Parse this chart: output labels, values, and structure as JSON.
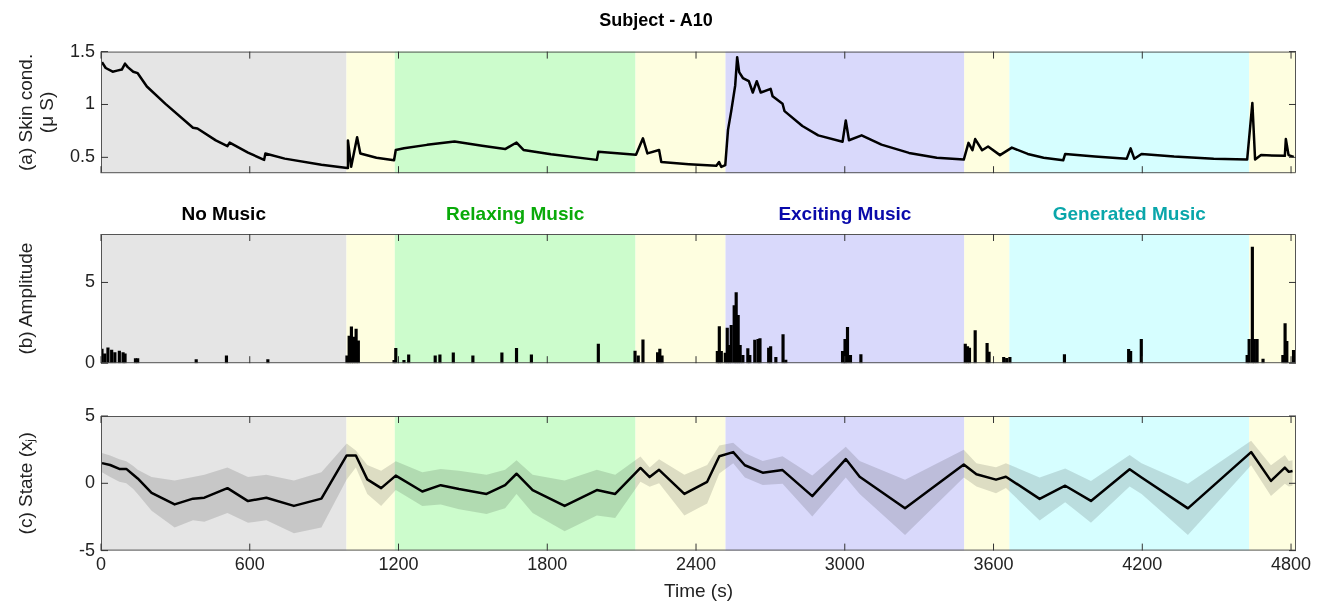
{
  "chart_data": [
    {
      "type": "line",
      "title": "Subject - A10",
      "ylabel": "(a) Skin cond.\n(μ S)",
      "xlim": [
        0,
        4820
      ],
      "xticks": [
        0,
        600,
        1200,
        1800,
        2400,
        3000,
        3600,
        4200,
        4800
      ],
      "ylim": [
        0.35,
        1.5
      ],
      "yticks": [
        0.5,
        1,
        1.5
      ],
      "tick_labels": "y",
      "grid": false,
      "legend": false,
      "bands": [
        {
          "axis": "x",
          "from": 0,
          "to": 990,
          "color": "#e5e5e5"
        },
        {
          "axis": "x",
          "from": 990,
          "to": 1185,
          "color": "#fefee0"
        },
        {
          "axis": "x",
          "from": 1185,
          "to": 2156,
          "color": "#ccfccc"
        },
        {
          "axis": "x",
          "from": 2156,
          "to": 2519,
          "color": "#fefee0"
        },
        {
          "axis": "x",
          "from": 2519,
          "to": 3482,
          "color": "#d9d9fb"
        },
        {
          "axis": "x",
          "from": 3482,
          "to": 3664,
          "color": "#fefee0"
        },
        {
          "axis": "x",
          "from": 3664,
          "to": 4631,
          "color": "#d6feff"
        },
        {
          "axis": "x",
          "from": 4631,
          "to": 4820,
          "color": "#fefee0"
        }
      ],
      "series": [
        {
          "color": "#000000",
          "x": [
            4,
            19,
            47,
            65,
            84,
            97,
            108,
            130,
            148,
            185,
            260,
            371,
            389,
            463,
            510,
            519,
            593,
            658,
            663,
            741,
            889,
            993,
            996,
            1009,
            1033,
            1046,
            1111,
            1182,
            1189,
            1222,
            1315,
            1426,
            1537,
            1630,
            1676,
            1704,
            1815,
            2000,
            2006,
            2158,
            2186,
            2204,
            2251,
            2260,
            2371,
            2482,
            2493,
            2502,
            2518,
            2529,
            2542,
            2558,
            2566,
            2574,
            2589,
            2613,
            2629,
            2645,
            2661,
            2701,
            2709,
            2749,
            2757,
            2829,
            2893,
            2991,
            3004,
            3017,
            3068,
            3148,
            3259,
            3371,
            3480,
            3499,
            3515,
            3526,
            3554,
            3578,
            3626,
            3674,
            3738,
            3802,
            3881,
            3889,
            4009,
            4137,
            4153,
            4168,
            4197,
            4328,
            4488,
            4623,
            4644,
            4655,
            4679,
            4775,
            4779,
            4790,
            4811
          ],
          "values": [
            1.4,
            1.345,
            1.31,
            1.32,
            1.33,
            1.386,
            1.353,
            1.31,
            1.296,
            1.17,
            1.006,
            0.78,
            0.773,
            0.66,
            0.606,
            0.64,
            0.545,
            0.476,
            0.537,
            0.488,
            0.43,
            0.4,
            0.66,
            0.41,
            0.69,
            0.537,
            0.496,
            0.472,
            0.57,
            0.586,
            0.618,
            0.65,
            0.61,
            0.578,
            0.64,
            0.57,
            0.529,
            0.476,
            0.553,
            0.525,
            0.68,
            0.537,
            0.57,
            0.455,
            0.435,
            0.42,
            0.455,
            0.41,
            0.426,
            0.76,
            0.937,
            1.18,
            1.447,
            1.306,
            1.25,
            1.22,
            1.113,
            1.22,
            1.113,
            1.148,
            1.077,
            1.007,
            0.937,
            0.796,
            0.708,
            0.648,
            0.849,
            0.662,
            0.708,
            0.62,
            0.542,
            0.496,
            0.479,
            0.637,
            0.567,
            0.673,
            0.567,
            0.602,
            0.521,
            0.592,
            0.532,
            0.496,
            0.472,
            0.532,
            0.507,
            0.486,
            0.585,
            0.486,
            0.532,
            0.507,
            0.486,
            0.479,
            1.014,
            0.479,
            0.521,
            0.514,
            0.673,
            0.521,
            0.504
          ]
        }
      ]
    },
    {
      "type": "bar",
      "ylabel": "(b) Amplitude",
      "xlim": [
        0,
        4820
      ],
      "xticks": [
        0,
        600,
        1200,
        1800,
        2400,
        3000,
        3600,
        4200,
        4800
      ],
      "ylim": [
        0,
        8
      ],
      "yticks": [
        0,
        5
      ],
      "tick_labels": "y",
      "grid": false,
      "legend": false,
      "bands": [
        {
          "axis": "x",
          "from": 0,
          "to": 990,
          "color": "#e5e5e5",
          "label": "No Music"
        },
        {
          "axis": "x",
          "from": 990,
          "to": 1185,
          "color": "#fefee0"
        },
        {
          "axis": "x",
          "from": 1185,
          "to": 2156,
          "color": "#ccfccc",
          "label": "Relaxing Music"
        },
        {
          "axis": "x",
          "from": 2156,
          "to": 2519,
          "color": "#fefee0"
        },
        {
          "axis": "x",
          "from": 2519,
          "to": 3482,
          "color": "#d9d9fb",
          "label": "Exciting Music"
        },
        {
          "axis": "x",
          "from": 3482,
          "to": 3664,
          "color": "#fefee0"
        },
        {
          "axis": "x",
          "from": 3664,
          "to": 4631,
          "color": "#d6feff",
          "label": "Generated Music"
        },
        {
          "axis": "x",
          "from": 4631,
          "to": 4820,
          "color": "#fefee0"
        }
      ],
      "series": [
        {
          "color": "#000000",
          "x": [
            4,
            15,
            28,
            43,
            56,
            74,
            89,
            97,
            139,
            148,
            384,
            506,
            673,
            992,
            1001,
            1010,
            1019,
            1029,
            1038,
            1182,
            1189,
            1222,
            1241,
            1348,
            1367,
            1421,
            1500,
            1617,
            1676,
            1736,
            2006,
            2154,
            2167,
            2186,
            2245,
            2254,
            2263,
            2486,
            2494,
            2502,
            2518,
            2526,
            2534,
            2542,
            2554,
            2562,
            2570,
            2578,
            2589,
            2609,
            2617,
            2637,
            2650,
            2658,
            2693,
            2701,
            2722,
            2751,
            2762,
            2991,
            3001,
            3011,
            3023,
            3065,
            3486,
            3495,
            3503,
            3526,
            3574,
            3582,
            3641,
            3653,
            3666,
            3886,
            4145,
            4153,
            4196,
            4623,
            4631,
            4644,
            4652,
            4663,
            4687,
            4767,
            4776,
            4783,
            4810
          ],
          "values": [
            0.87,
            0.58,
            0.95,
            0.81,
            0.66,
            0.75,
            0.66,
            0.58,
            0.29,
            0.29,
            0.23,
            0.46,
            0.23,
            0.46,
            1.68,
            2.25,
            1.62,
            2.11,
            1.39,
            0.17,
            0.92,
            0.17,
            0.52,
            0.46,
            0.52,
            0.64,
            0.46,
            0.64,
            0.92,
            0.52,
            1.18,
            0.75,
            0.46,
            1.45,
            0.66,
            0.87,
            0.46,
            0.74,
            2.27,
            0.74,
            0.62,
            2.17,
            1.11,
            2.34,
            3.57,
            4.38,
            2.96,
            1.11,
            0.49,
            0.91,
            0.49,
            1.43,
            1.48,
            1.53,
            0.94,
            1.03,
            0.37,
            1.77,
            0.2,
            0.74,
            1.48,
            2.22,
            0.49,
            0.54,
            1.18,
            1.03,
            0.94,
            2.02,
            1.23,
            0.69,
            0.37,
            0.3,
            0.37,
            0.54,
            0.86,
            0.74,
            1.48,
            0.49,
            1.48,
            7.19,
            1.48,
            1.48,
            0.25,
            0.49,
            2.46,
            1.35,
            0.79
          ]
        }
      ]
    },
    {
      "type": "line",
      "ylabel": "(c) State (xⱼ)",
      "xlabel": "Time (s)",
      "xlim": [
        0,
        4820
      ],
      "xticks": [
        0,
        600,
        1200,
        1800,
        2400,
        3000,
        3600,
        4200,
        4800
      ],
      "ylim": [
        -5,
        5
      ],
      "yticks": [
        -5,
        0,
        5
      ],
      "grid": false,
      "legend": false,
      "bands": [
        {
          "axis": "x",
          "from": 0,
          "to": 990,
          "color": "#e5e5e5"
        },
        {
          "axis": "x",
          "from": 990,
          "to": 1185,
          "color": "#fefee0"
        },
        {
          "axis": "x",
          "from": 1185,
          "to": 2156,
          "color": "#ccfccc"
        },
        {
          "axis": "x",
          "from": 2156,
          "to": 2519,
          "color": "#fefee0"
        },
        {
          "axis": "x",
          "from": 2519,
          "to": 3482,
          "color": "#d9d9fb"
        },
        {
          "axis": "x",
          "from": 3482,
          "to": 3664,
          "color": "#fefee0"
        },
        {
          "axis": "x",
          "from": 3664,
          "to": 4631,
          "color": "#d6feff"
        },
        {
          "axis": "x",
          "from": 4631,
          "to": 4820,
          "color": "#fefee0"
        }
      ],
      "series": [
        {
          "color": "#000000",
          "x": [
            4,
            37,
            74,
            102,
            130,
            148,
            204,
            297,
            371,
            417,
            510,
            593,
            667,
            778,
            889,
            991,
            1028,
            1074,
            1130,
            1189,
            1296,
            1370,
            1444,
            1555,
            1630,
            1676,
            1741,
            1870,
            2000,
            2074,
            2176,
            2213,
            2251,
            2353,
            2445,
            2494,
            2550,
            2597,
            2669,
            2749,
            2869,
            3004,
            3060,
            3243,
            3480,
            3531,
            3610,
            3650,
            3786,
            3889,
            3993,
            4149,
            4197,
            4384,
            4639,
            4719,
            4775,
            4791,
            4806
          ],
          "values": [
            1.5,
            1.36,
            1.07,
            1.07,
            0.64,
            0.36,
            -0.71,
            -1.57,
            -1.14,
            -1.07,
            -0.36,
            -1.32,
            -1.07,
            -1.68,
            -1.14,
            2.07,
            2.07,
            0.29,
            -0.36,
            0.57,
            -0.61,
            -0.14,
            -0.43,
            -0.79,
            -0.14,
            0.71,
            -0.5,
            -1.68,
            -0.5,
            -0.79,
            1.14,
            0.46,
            1.0,
            -0.79,
            0.11,
            2.01,
            2.32,
            1.34,
            0.79,
            0.98,
            -0.95,
            1.8,
            0.49,
            -1.86,
            1.4,
            0.67,
            0.27,
            0.49,
            -1.16,
            -0.18,
            -1.31,
            1.04,
            0.43,
            -1.86,
            2.32,
            0.18,
            1.16,
            0.85,
            0.91
          ],
          "upper": [
            2.25,
            2.07,
            1.79,
            1.64,
            1.29,
            1.0,
            0.46,
            0.21,
            0.46,
            0.64,
            1.18,
            0.46,
            0.64,
            0.21,
            0.82,
            2.96,
            2.43,
            1.36,
            0.93,
            1.64,
            0.82,
            1.07,
            0.93,
            0.64,
            1.0,
            1.71,
            0.64,
            0.21,
            1.0,
            0.64,
            2.0,
            1.18,
            1.79,
            0.64,
            1.36,
            2.8,
            3.02,
            2.26,
            1.65,
            2.01,
            0.58,
            2.71,
            1.65,
            0.27,
            2.5,
            1.49,
            1.19,
            1.49,
            0.43,
            1.1,
            0.18,
            2.1,
            1.49,
            -0.03,
            3.17,
            1.34,
            2.1,
            1.65,
            1.71
          ],
          "lower": [
            0.82,
            0.46,
            0.11,
            0,
            -0.43,
            -0.79,
            -2.04,
            -3.29,
            -2.75,
            -2.86,
            -2.21,
            -2.93,
            -2.75,
            -3.71,
            -3.29,
            0.29,
            1.18,
            -0.79,
            -1.68,
            -0.5,
            -1.68,
            -1.57,
            -1.93,
            -2.29,
            -1.86,
            -0.79,
            -2.21,
            -3.57,
            -2.39,
            -2.57,
            0.11,
            -0.25,
            0,
            -2.39,
            -1.5,
            0.73,
            1.49,
            0.43,
            -0.12,
            -0.03,
            -2.47,
            0.43,
            -0.79,
            -3.84,
            0.43,
            -0.24,
            -0.73,
            -0.34,
            -2.77,
            -1.4,
            -2.93,
            -0.24,
            -0.79,
            -3.84,
            1.34,
            -0.95,
            -0.03,
            -0.24,
            -0.18
          ]
        }
      ]
    }
  ]
}
